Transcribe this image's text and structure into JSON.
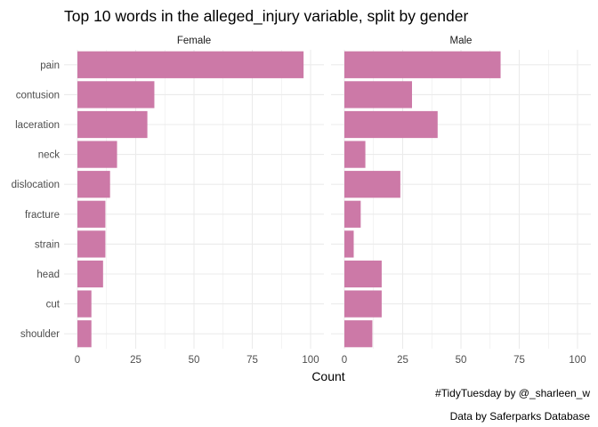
{
  "chart_data": {
    "type": "bar",
    "orientation": "horizontal",
    "title": "Top 10 words in the alleged_injury variable, split by gender",
    "xlabel": "Count",
    "ylabel": "",
    "xlim": [
      0,
      100
    ],
    "xticks": [
      0,
      25,
      50,
      75,
      100
    ],
    "grid": true,
    "legend": "none",
    "bar_color": "#cc79a7",
    "grid_color": "#ebebeb",
    "categories": [
      "pain",
      "contusion",
      "laceration",
      "neck",
      "dislocation",
      "fracture",
      "strain",
      "head",
      "cut",
      "shoulder"
    ],
    "facets": [
      {
        "name": "Female",
        "values": [
          97,
          33,
          30,
          17,
          14,
          12,
          12,
          11,
          6,
          6
        ]
      },
      {
        "name": "Male",
        "values": [
          67,
          29,
          40,
          9,
          24,
          7,
          4,
          16,
          16,
          12
        ]
      }
    ],
    "caption_lines": [
      "#TidyTuesday by @_sharleen_w",
      "Data by Saferparks Database"
    ]
  }
}
